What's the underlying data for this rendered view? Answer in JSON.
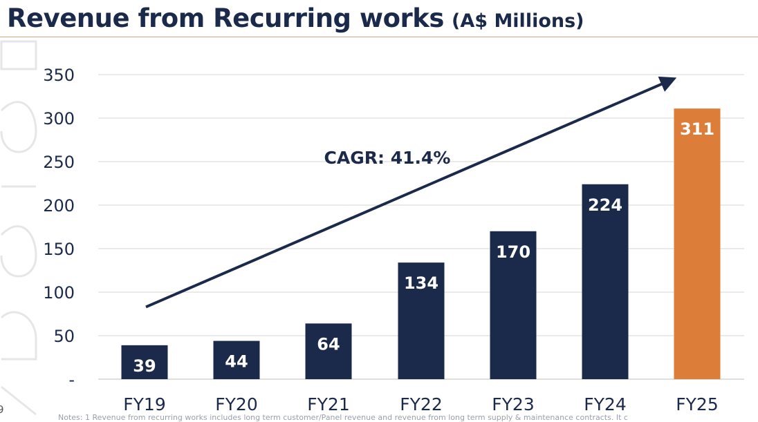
{
  "page": {
    "title_main": "Revenue from Recurring works",
    "title_sub": "(A$ Millions)",
    "page_number": "9",
    "notes": "Notes: 1 Revenue from recurring works includes long term customer/Panel revenue and revenue from long term supply & maintenance contracts. It c"
  },
  "colors": {
    "navy": "#1b2a4a",
    "orange": "#dd7d3a",
    "grid": "#d6d6d6",
    "text": "#1b2a4a"
  },
  "chart_data": {
    "type": "bar",
    "title": "Revenue from Recurring works (A$ Millions)",
    "categories": [
      "FY19",
      "FY20",
      "FY21",
      "FY22",
      "FY23",
      "FY24",
      "FY25"
    ],
    "values": [
      39,
      44,
      64,
      134,
      170,
      224,
      311
    ],
    "value_labels": [
      "39",
      "44",
      "64",
      "134",
      "170",
      "224",
      "311"
    ],
    "highlight_category": "FY25",
    "ylim": [
      0,
      350
    ],
    "y_ticks": [
      0,
      50,
      100,
      150,
      200,
      250,
      300,
      350
    ],
    "y_tick_labels": [
      "-",
      "50",
      "100",
      "150",
      "200",
      "250",
      "300",
      "350"
    ],
    "grid": true,
    "annotation": {
      "text": "CAGR: 41.4%",
      "arrow_from": {
        "category": "FY19",
        "value": 83
      },
      "arrow_to": {
        "category": "FY25",
        "value": 343
      }
    }
  }
}
